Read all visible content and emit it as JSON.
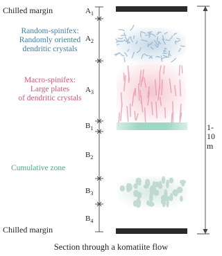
{
  "labels": {
    "chilled_margin_top": "Chilled margin",
    "random_spinifex": [
      "Random-spinifex:",
      "Randomly oriented",
      "dendritic crystals"
    ],
    "macro_spinifex": [
      "Macro-spinifex:",
      "Large plates",
      "of dendritic crystals"
    ],
    "cumulative_zone": "Cumulative zone",
    "chilled_margin_bottom": "Chilled margin"
  },
  "zones": {
    "A1_top": "A",
    "A1_top_sub": "1",
    "A2": "A",
    "A2_sub": "2",
    "A3": "A",
    "A3_sub": "3",
    "B1": "B",
    "B1_sub": "1",
    "B2": "B",
    "B2_sub": "2",
    "B3": "B",
    "B3_sub": "3",
    "B4": "B",
    "B4_sub": "4"
  },
  "thickness": "1-10 m",
  "caption": "Section through a komatiite flow",
  "colors": {
    "random_spinifex_text": "#3d7fa6",
    "macro_spinifex_text": "#d0577a",
    "cumulative_text": "#46a98a",
    "random_spinifex_fill": "#8fb0cc",
    "macro_spinifex_fill": "#e58fa6",
    "b1_fill": "#7fc9b0",
    "cumulate_fill": "#a6c8bd",
    "chilled_margin": "#2a2a2a"
  }
}
